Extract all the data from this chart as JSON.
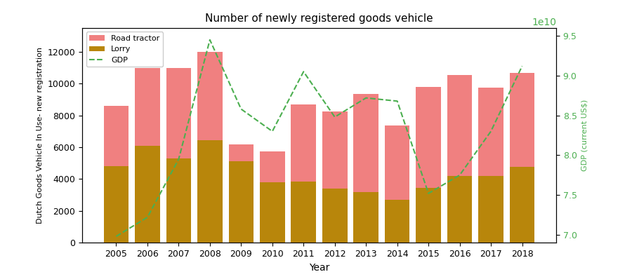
{
  "years": [
    2005,
    2006,
    2007,
    2008,
    2009,
    2010,
    2011,
    2012,
    2013,
    2014,
    2015,
    2016,
    2017,
    2018
  ],
  "road_tractor": [
    8600,
    11000,
    11000,
    12000,
    6200,
    5750,
    8700,
    8250,
    9350,
    7350,
    9800,
    10550,
    9750,
    10650
  ],
  "lorry": [
    4800,
    6100,
    5300,
    6450,
    5100,
    3800,
    3850,
    3400,
    3200,
    2700,
    3450,
    4200,
    4200,
    4750
  ],
  "gdp": [
    69800000000.0,
    72200000000.0,
    79500000000.0,
    94500000000.0,
    85800000000.0,
    83000000000.0,
    90500000000.0,
    84800000000.0,
    87200000000.0,
    86800000000.0,
    75200000000.0,
    77500000000.0,
    83000000000.0,
    91200000000.0
  ],
  "bar_color_road": "#f08080",
  "bar_color_lorry": "#b8860b",
  "gdp_color": "#4caf50",
  "title": "Number of newly registered goods vehicle",
  "ylabel_left": "Dutch Goods Vehicle In Use- new registration",
  "ylabel_right": "GDP (current US$)",
  "xlabel": "Year",
  "ylim_left": [
    0,
    13500
  ],
  "ylim_right": [
    69000000000.0,
    96000000000.0
  ],
  "bar_width": 0.8,
  "figsize": [
    9.0,
    3.98
  ],
  "dpi": 100
}
